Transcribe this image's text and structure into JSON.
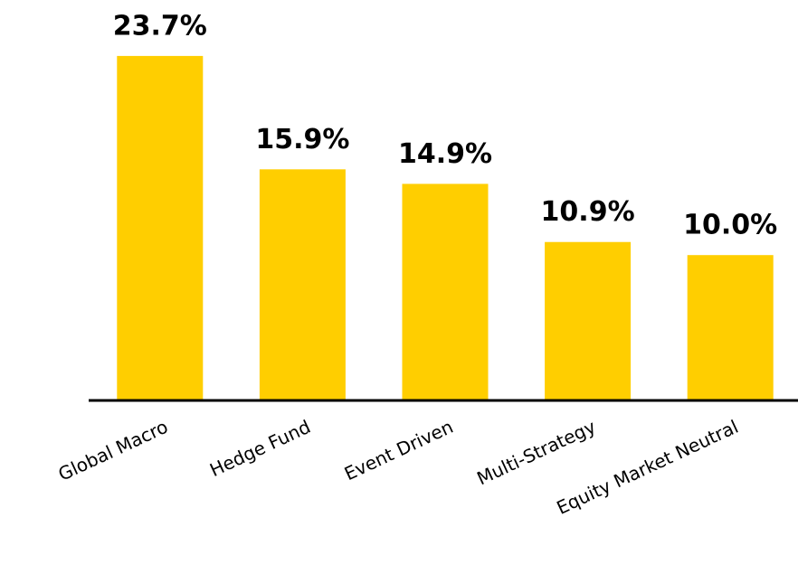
{
  "chart_data": {
    "type": "bar",
    "categories": [
      "Global Macro",
      "Hedge Fund",
      "Event Driven",
      "Multi-Strategy",
      "Equity Market Neutral"
    ],
    "values": [
      23.7,
      15.9,
      14.9,
      10.9,
      10.0
    ],
    "value_labels": [
      "23.7%",
      "15.9%",
      "14.9%",
      "10.9%",
      "10.0%"
    ],
    "color": "#ffce00",
    "ylim": [
      0,
      25
    ]
  }
}
